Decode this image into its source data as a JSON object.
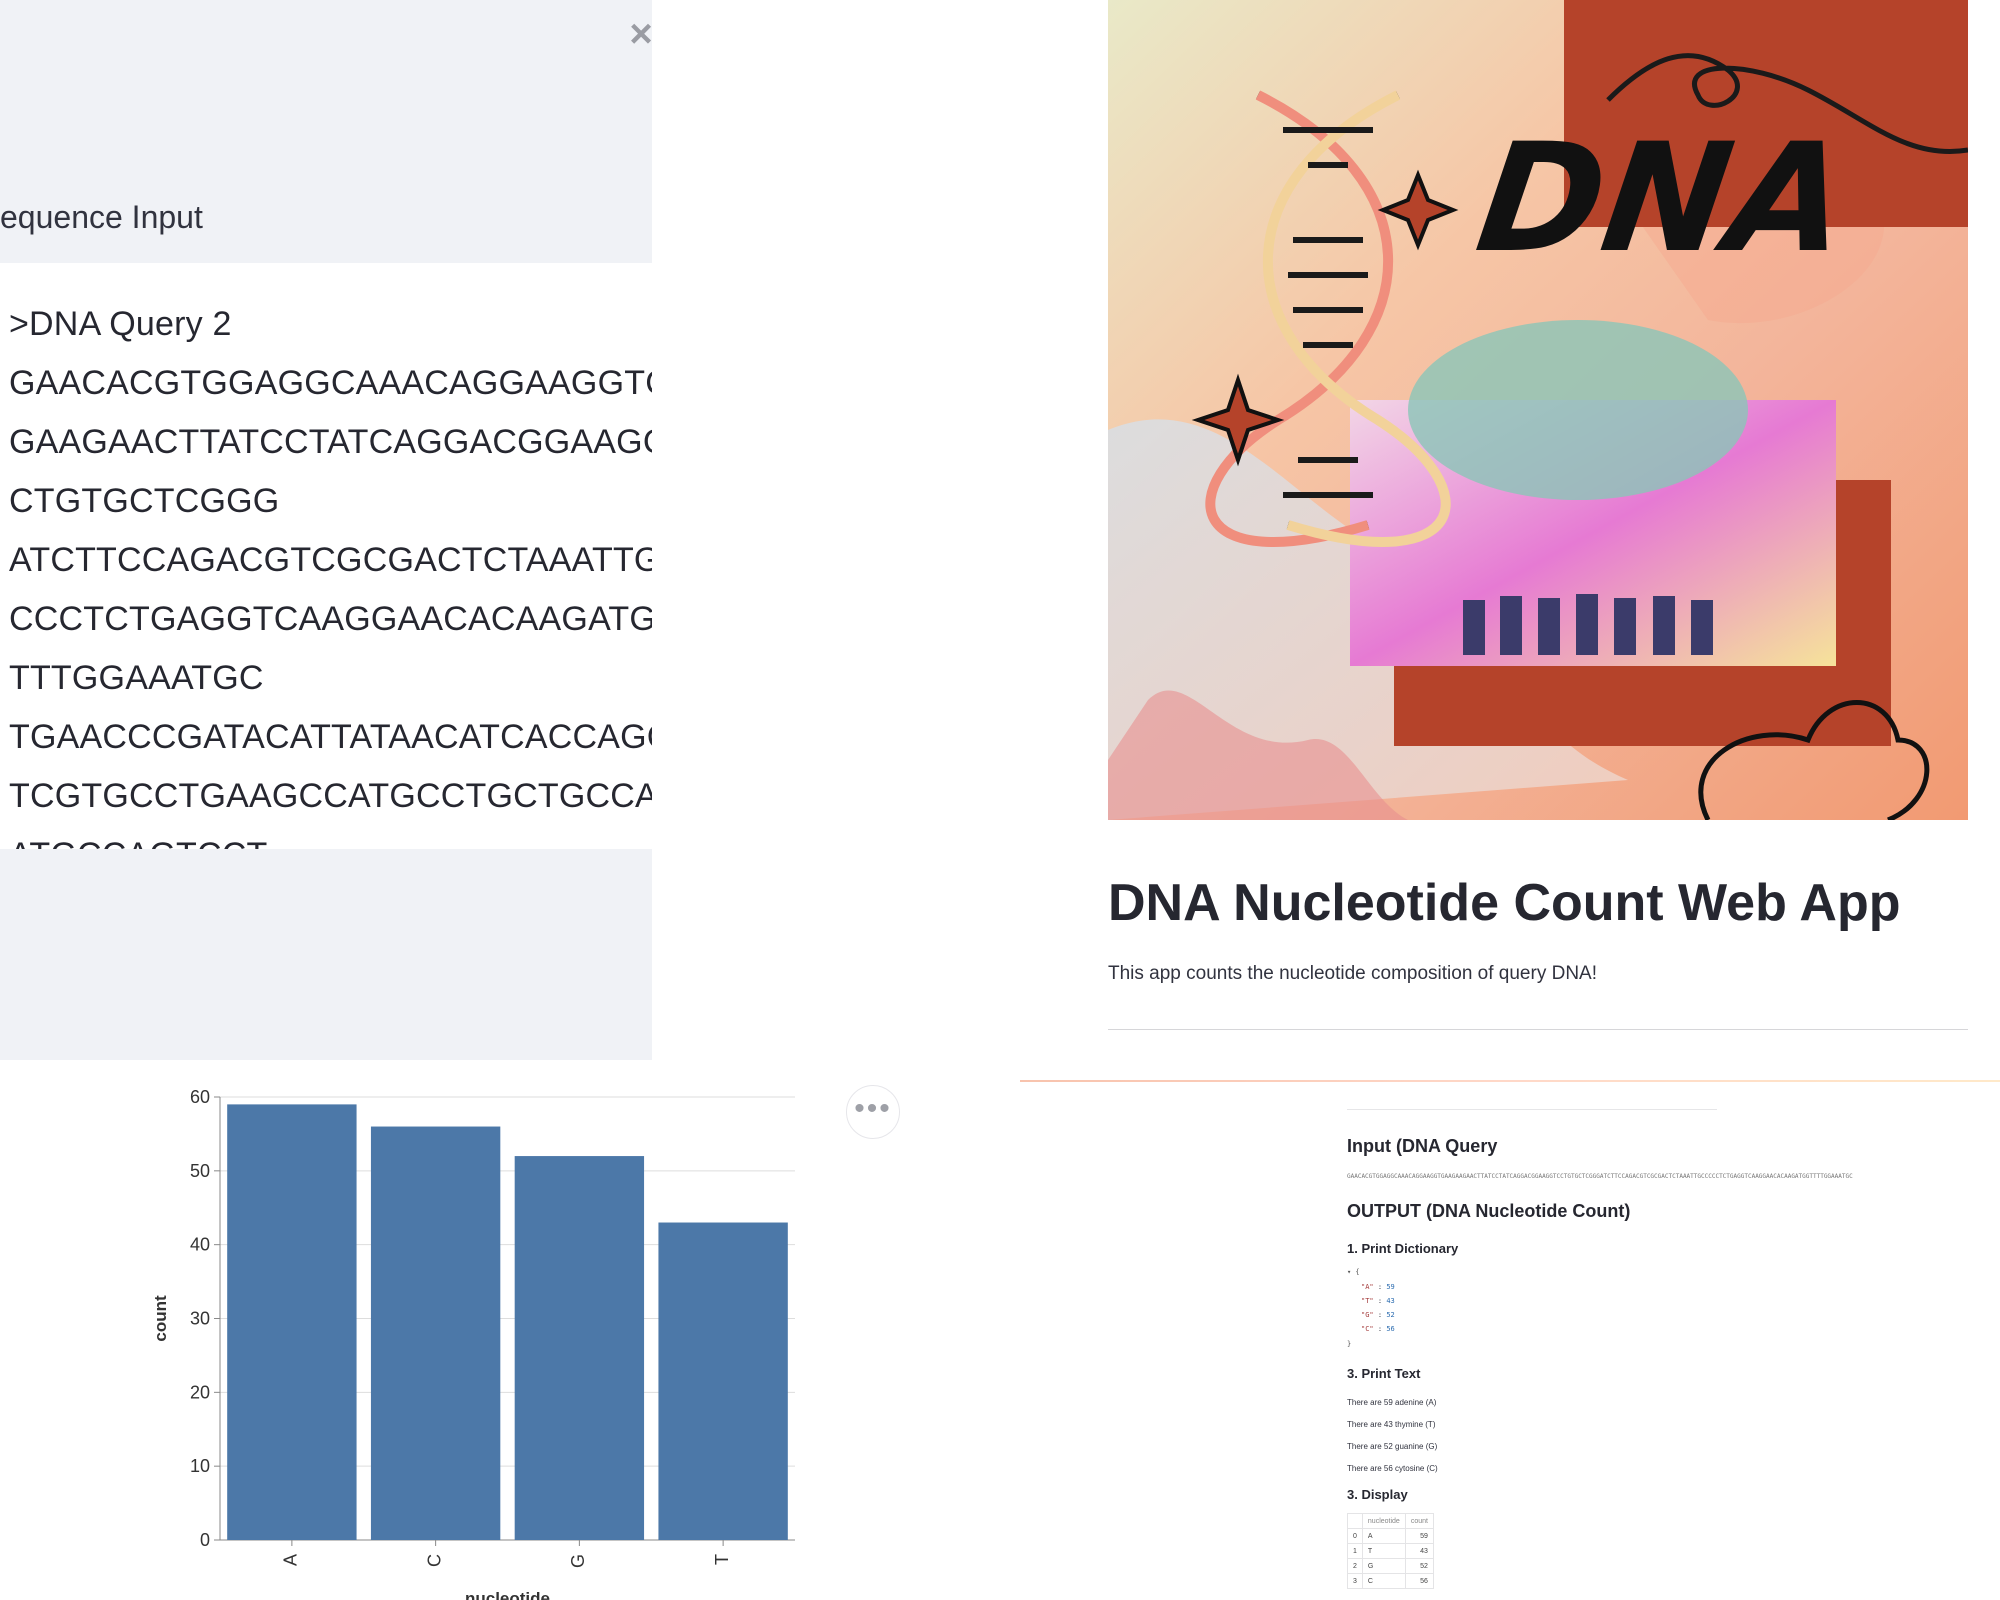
{
  "sidebar": {
    "close_label": "×",
    "sequence_label": "equence Input",
    "sequence_lines": [
      ">DNA Query 2",
      "GAACACGTGGAGGCAAACAGGAAGGTGAA",
      "GAAGAACTTATCCTATCAGGACGGAAGGTC",
      "CTGTGCTCGGG",
      "ATCTTCCAGACGTCGCGACTCTAAATTGCC",
      "CCCTCTGAGGTCAAGGAACACAAGATGGT",
      "TTTGGAAATGC",
      "TGAACCCGATACATTATAACATCACCAGCA",
      "TCGTGCCTGAAGCCATGCCTGCTGCCACC",
      "ATGCCAGTCCT"
    ]
  },
  "banner": {
    "text": "DNA"
  },
  "main": {
    "title": "DNA Nucleotide Count Web App",
    "subtitle": "This app counts the nucleotide composition of query DNA!"
  },
  "output": {
    "input_heading": "Input (DNA Query",
    "input_sequence": "GAACACGTGGAGGCAAACAGGAAGGTGAAGAAGAACTTATCCTATCAGGACGGAAGGTCCTGTGCTCGGGATCTTCCAGACGTCGCGACTCTAAATTGCCCCCTCTGAGGTCAAGGAACACAAGATGGTTTTGGAAATGC",
    "output_heading": "OUTPUT (DNA Nucleotide Count)",
    "dict_heading": "1. Print Dictionary",
    "dict_open": "▾ {",
    "dict_close": "}",
    "dict_entries": [
      {
        "key": "\"A\"",
        "sep": " : ",
        "value": "59"
      },
      {
        "key": "\"T\"",
        "sep": " : ",
        "value": "43"
      },
      {
        "key": "\"G\"",
        "sep": " : ",
        "value": "52"
      },
      {
        "key": "\"C\"",
        "sep": " : ",
        "value": "56"
      }
    ],
    "text_heading": "3. Print Text",
    "text_lines": [
      "There are 59 adenine (A)",
      "There are 43 thymine (T)",
      "There are 52 guanine (G)",
      "There are 56 cytosine (C)"
    ],
    "display_heading": "3. Display",
    "table": {
      "columns": [
        "",
        "nucleotide",
        "count"
      ],
      "rows": [
        [
          "0",
          "A",
          "59"
        ],
        [
          "1",
          "T",
          "43"
        ],
        [
          "2",
          "G",
          "52"
        ],
        [
          "3",
          "C",
          "56"
        ]
      ]
    }
  },
  "chart_menu_label": "•••",
  "chart_data": {
    "type": "bar",
    "categories": [
      "A",
      "C",
      "G",
      "T"
    ],
    "values": [
      59,
      56,
      52,
      43
    ],
    "xlabel": "nucleotide",
    "ylabel": "count",
    "ylim": [
      0,
      60
    ],
    "yticks": [
      0,
      10,
      20,
      30,
      40,
      50,
      60
    ],
    "grid": true,
    "bar_color": "#4c78a8"
  }
}
